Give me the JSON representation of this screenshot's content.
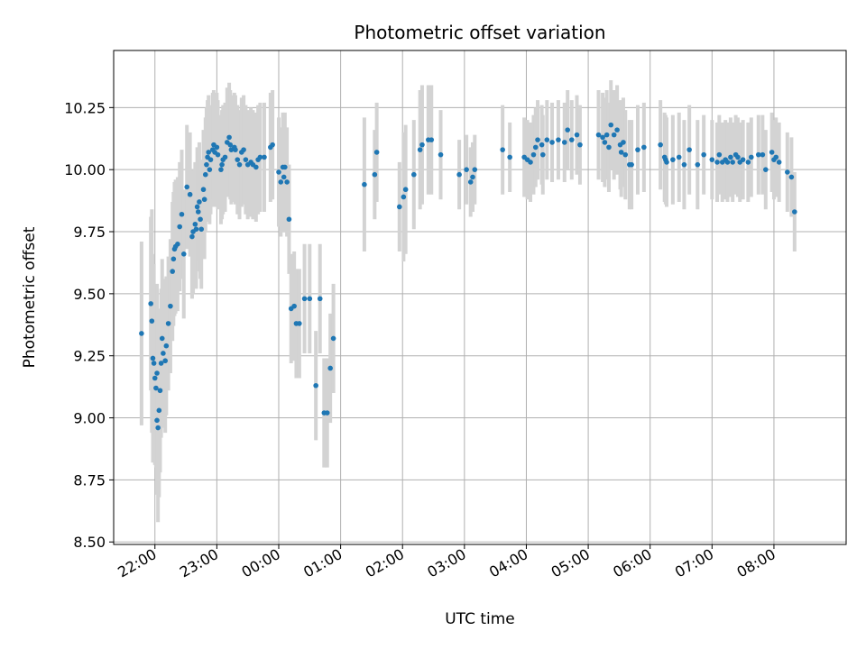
{
  "chart_data": {
    "type": "scatter",
    "title": "Photometric offset variation",
    "xlabel": "UTC time",
    "ylabel": "Photometric offset",
    "x_is_time": true,
    "xlim": [
      "21:20",
      "09:10"
    ],
    "ylim": [
      8.49,
      10.48
    ],
    "grid": true,
    "legend": "none",
    "x_ticks": [
      "22:00",
      "23:00",
      "00:00",
      "01:00",
      "02:00",
      "03:00",
      "04:00",
      "05:00",
      "06:00",
      "07:00",
      "08:00"
    ],
    "y_ticks": [
      "8.50",
      "8.75",
      "9.00",
      "9.25",
      "9.50",
      "9.75",
      "10.00",
      "10.25"
    ],
    "colors": {
      "points": "#1f77b4",
      "errorbars": "#d3d3d3",
      "grid": "#b0b0b0"
    },
    "series": [
      {
        "points": [
          [
            "21:47",
            9.34,
            0.37
          ],
          [
            "21:56",
            9.46,
            0.35
          ],
          [
            "21:57",
            9.39,
            0.45
          ],
          [
            "21:58",
            9.24,
            0.42
          ],
          [
            "21:59",
            9.22,
            0.4
          ],
          [
            "22:00",
            9.16,
            0.35
          ],
          [
            "22:01",
            9.12,
            0.32
          ],
          [
            "22:02",
            9.18,
            0.36
          ],
          [
            "22:02",
            8.99,
            0.3
          ],
          [
            "22:03",
            8.96,
            0.38
          ],
          [
            "22:04",
            9.03,
            0.35
          ],
          [
            "22:05",
            9.11,
            0.33
          ],
          [
            "22:06",
            9.22,
            0.3
          ],
          [
            "22:07",
            9.32,
            0.32
          ],
          [
            "22:08",
            9.26,
            0.3
          ],
          [
            "22:10",
            9.23,
            0.29
          ],
          [
            "22:11",
            9.29,
            0.28
          ],
          [
            "22:13",
            9.38,
            0.27
          ],
          [
            "22:15",
            9.45,
            0.27
          ],
          [
            "22:17",
            9.59,
            0.28
          ],
          [
            "22:18",
            9.64,
            0.27
          ],
          [
            "22:19",
            9.68,
            0.27
          ],
          [
            "22:20",
            9.69,
            0.27
          ],
          [
            "22:22",
            9.7,
            0.27
          ],
          [
            "22:24",
            9.77,
            0.26
          ],
          [
            "22:26",
            9.82,
            0.26
          ],
          [
            "22:28",
            9.66,
            0.26
          ],
          [
            "22:31",
            9.93,
            0.25
          ],
          [
            "22:34",
            9.9,
            0.25
          ],
          [
            "22:36",
            9.73,
            0.25
          ],
          [
            "22:37",
            9.75,
            0.25
          ],
          [
            "22:39",
            9.78,
            0.25
          ],
          [
            "22:40",
            9.76,
            0.24
          ],
          [
            "22:41",
            9.85,
            0.24
          ],
          [
            "22:42",
            9.83,
            0.24
          ],
          [
            "22:43",
            9.87,
            0.24
          ],
          [
            "22:44",
            9.8,
            0.24
          ],
          [
            "22:45",
            9.76,
            0.24
          ],
          [
            "22:47",
            9.92,
            0.24
          ],
          [
            "22:48",
            9.88,
            0.24
          ],
          [
            "22:49",
            9.98,
            0.23
          ],
          [
            "22:50",
            10.02,
            0.23
          ],
          [
            "22:51",
            10.05,
            0.23
          ],
          [
            "22:52",
            10.07,
            0.23
          ],
          [
            "22:53",
            10.0,
            0.22
          ],
          [
            "22:54",
            10.04,
            0.22
          ],
          [
            "22:56",
            10.08,
            0.23
          ],
          [
            "22:57",
            10.1,
            0.22
          ],
          [
            "22:58",
            10.07,
            0.22
          ],
          [
            "23:00",
            10.09,
            0.22
          ],
          [
            "23:01",
            10.06,
            0.22
          ],
          [
            "23:04",
            10.0,
            0.22
          ],
          [
            "23:05",
            10.02,
            0.22
          ],
          [
            "23:06",
            10.04,
            0.22
          ],
          [
            "23:08",
            10.05,
            0.22
          ],
          [
            "23:10",
            10.11,
            0.22
          ],
          [
            "23:12",
            10.13,
            0.22
          ],
          [
            "23:13",
            10.1,
            0.22
          ],
          [
            "23:14",
            10.08,
            0.22
          ],
          [
            "23:17",
            10.09,
            0.22
          ],
          [
            "23:18",
            10.08,
            0.22
          ],
          [
            "23:20",
            10.04,
            0.22
          ],
          [
            "23:22",
            10.02,
            0.22
          ],
          [
            "23:24",
            10.07,
            0.22
          ],
          [
            "23:26",
            10.08,
            0.22
          ],
          [
            "23:28",
            10.04,
            0.22
          ],
          [
            "23:30",
            10.02,
            0.22
          ],
          [
            "23:33",
            10.03,
            0.22
          ],
          [
            "23:35",
            10.02,
            0.22
          ],
          [
            "23:38",
            10.01,
            0.22
          ],
          [
            "23:40",
            10.04,
            0.22
          ],
          [
            "23:42",
            10.05,
            0.22
          ],
          [
            "23:46",
            10.05,
            0.22
          ],
          [
            "23:52",
            10.09,
            0.22
          ],
          [
            "23:54",
            10.1,
            0.22
          ],
          [
            "00:00",
            9.99,
            0.22
          ],
          [
            "00:02",
            9.95,
            0.22
          ],
          [
            "00:04",
            10.01,
            0.22
          ],
          [
            "00:05",
            9.97,
            0.22
          ],
          [
            "00:06",
            10.01,
            0.22
          ],
          [
            "00:08",
            9.95,
            0.22
          ],
          [
            "00:10",
            9.8,
            0.22
          ],
          [
            "00:12",
            9.44,
            0.22
          ],
          [
            "00:15",
            9.45,
            0.22
          ],
          [
            "00:17",
            9.38,
            0.22
          ],
          [
            "00:20",
            9.38,
            0.22
          ],
          [
            "00:25",
            9.48,
            0.22
          ],
          [
            "00:30",
            9.48,
            0.22
          ],
          [
            "00:36",
            9.13,
            0.22
          ],
          [
            "00:40",
            9.48,
            0.22
          ],
          [
            "00:44",
            9.02,
            0.22
          ],
          [
            "00:47",
            9.02,
            0.22
          ],
          [
            "00:50",
            9.2,
            0.22
          ],
          [
            "00:53",
            9.32,
            0.22
          ],
          [
            "01:23",
            9.94,
            0.27
          ],
          [
            "01:33",
            9.98,
            0.18
          ],
          [
            "01:35",
            10.07,
            0.2
          ],
          [
            "01:57",
            9.85,
            0.18
          ],
          [
            "02:01",
            9.89,
            0.26
          ],
          [
            "02:03",
            9.92,
            0.26
          ],
          [
            "02:11",
            9.98,
            0.22
          ],
          [
            "02:17",
            10.08,
            0.24
          ],
          [
            "02:19",
            10.1,
            0.24
          ],
          [
            "02:25",
            10.12,
            0.22
          ],
          [
            "02:28",
            10.12,
            0.22
          ],
          [
            "02:37",
            10.06,
            0.18
          ],
          [
            "02:55",
            9.98,
            0.14
          ],
          [
            "03:02",
            10.0,
            0.14
          ],
          [
            "03:06",
            9.95,
            0.14
          ],
          [
            "03:08",
            9.97,
            0.14
          ],
          [
            "03:10",
            10.0,
            0.14
          ],
          [
            "03:37",
            10.08,
            0.18
          ],
          [
            "03:44",
            10.05,
            0.14
          ],
          [
            "03:58",
            10.05,
            0.16
          ],
          [
            "04:01",
            10.04,
            0.16
          ],
          [
            "04:04",
            10.03,
            0.16
          ],
          [
            "04:07",
            10.06,
            0.16
          ],
          [
            "04:09",
            10.09,
            0.16
          ],
          [
            "04:11",
            10.12,
            0.16
          ],
          [
            "04:15",
            10.1,
            0.16
          ],
          [
            "04:16",
            10.06,
            0.16
          ],
          [
            "04:20",
            10.12,
            0.16
          ],
          [
            "04:25",
            10.11,
            0.16
          ],
          [
            "04:31",
            10.12,
            0.16
          ],
          [
            "04:37",
            10.11,
            0.16
          ],
          [
            "04:40",
            10.16,
            0.16
          ],
          [
            "04:44",
            10.12,
            0.16
          ],
          [
            "04:49",
            10.14,
            0.16
          ],
          [
            "04:52",
            10.1,
            0.16
          ],
          [
            "05:10",
            10.14,
            0.18
          ],
          [
            "05:14",
            10.13,
            0.18
          ],
          [
            "05:16",
            10.11,
            0.18
          ],
          [
            "05:18",
            10.14,
            0.18
          ],
          [
            "05:20",
            10.09,
            0.18
          ],
          [
            "05:22",
            10.18,
            0.18
          ],
          [
            "05:25",
            10.14,
            0.18
          ],
          [
            "05:28",
            10.16,
            0.18
          ],
          [
            "05:31",
            10.1,
            0.18
          ],
          [
            "05:32",
            10.07,
            0.18
          ],
          [
            "05:34",
            10.11,
            0.18
          ],
          [
            "05:36",
            10.06,
            0.18
          ],
          [
            "05:40",
            10.02,
            0.18
          ],
          [
            "05:42",
            10.02,
            0.18
          ],
          [
            "05:48",
            10.08,
            0.18
          ],
          [
            "05:54",
            10.09,
            0.18
          ],
          [
            "06:10",
            10.1,
            0.18
          ],
          [
            "06:14",
            10.05,
            0.18
          ],
          [
            "06:15",
            10.04,
            0.18
          ],
          [
            "06:16",
            10.03,
            0.18
          ],
          [
            "06:22",
            10.04,
            0.18
          ],
          [
            "06:28",
            10.05,
            0.18
          ],
          [
            "06:33",
            10.02,
            0.18
          ],
          [
            "06:38",
            10.08,
            0.18
          ],
          [
            "06:46",
            10.02,
            0.18
          ],
          [
            "06:52",
            10.06,
            0.16
          ],
          [
            "07:00",
            10.04,
            0.16
          ],
          [
            "07:05",
            10.03,
            0.16
          ],
          [
            "07:07",
            10.06,
            0.16
          ],
          [
            "07:10",
            10.03,
            0.16
          ],
          [
            "07:13",
            10.04,
            0.16
          ],
          [
            "07:15",
            10.03,
            0.16
          ],
          [
            "07:18",
            10.05,
            0.16
          ],
          [
            "07:20",
            10.03,
            0.16
          ],
          [
            "07:23",
            10.06,
            0.16
          ],
          [
            "07:25",
            10.05,
            0.16
          ],
          [
            "07:27",
            10.03,
            0.16
          ],
          [
            "07:30",
            10.04,
            0.16
          ],
          [
            "07:35",
            10.03,
            0.16
          ],
          [
            "07:38",
            10.05,
            0.16
          ],
          [
            "07:45",
            10.06,
            0.16
          ],
          [
            "07:49",
            10.06,
            0.16
          ],
          [
            "07:52",
            10.0,
            0.16
          ],
          [
            "07:58",
            10.07,
            0.16
          ],
          [
            "08:00",
            10.04,
            0.16
          ],
          [
            "08:02",
            10.05,
            0.16
          ],
          [
            "08:05",
            10.03,
            0.16
          ],
          [
            "08:13",
            9.99,
            0.16
          ],
          [
            "08:17",
            9.97,
            0.16
          ],
          [
            "08:20",
            9.83,
            0.16
          ]
        ]
      }
    ]
  }
}
